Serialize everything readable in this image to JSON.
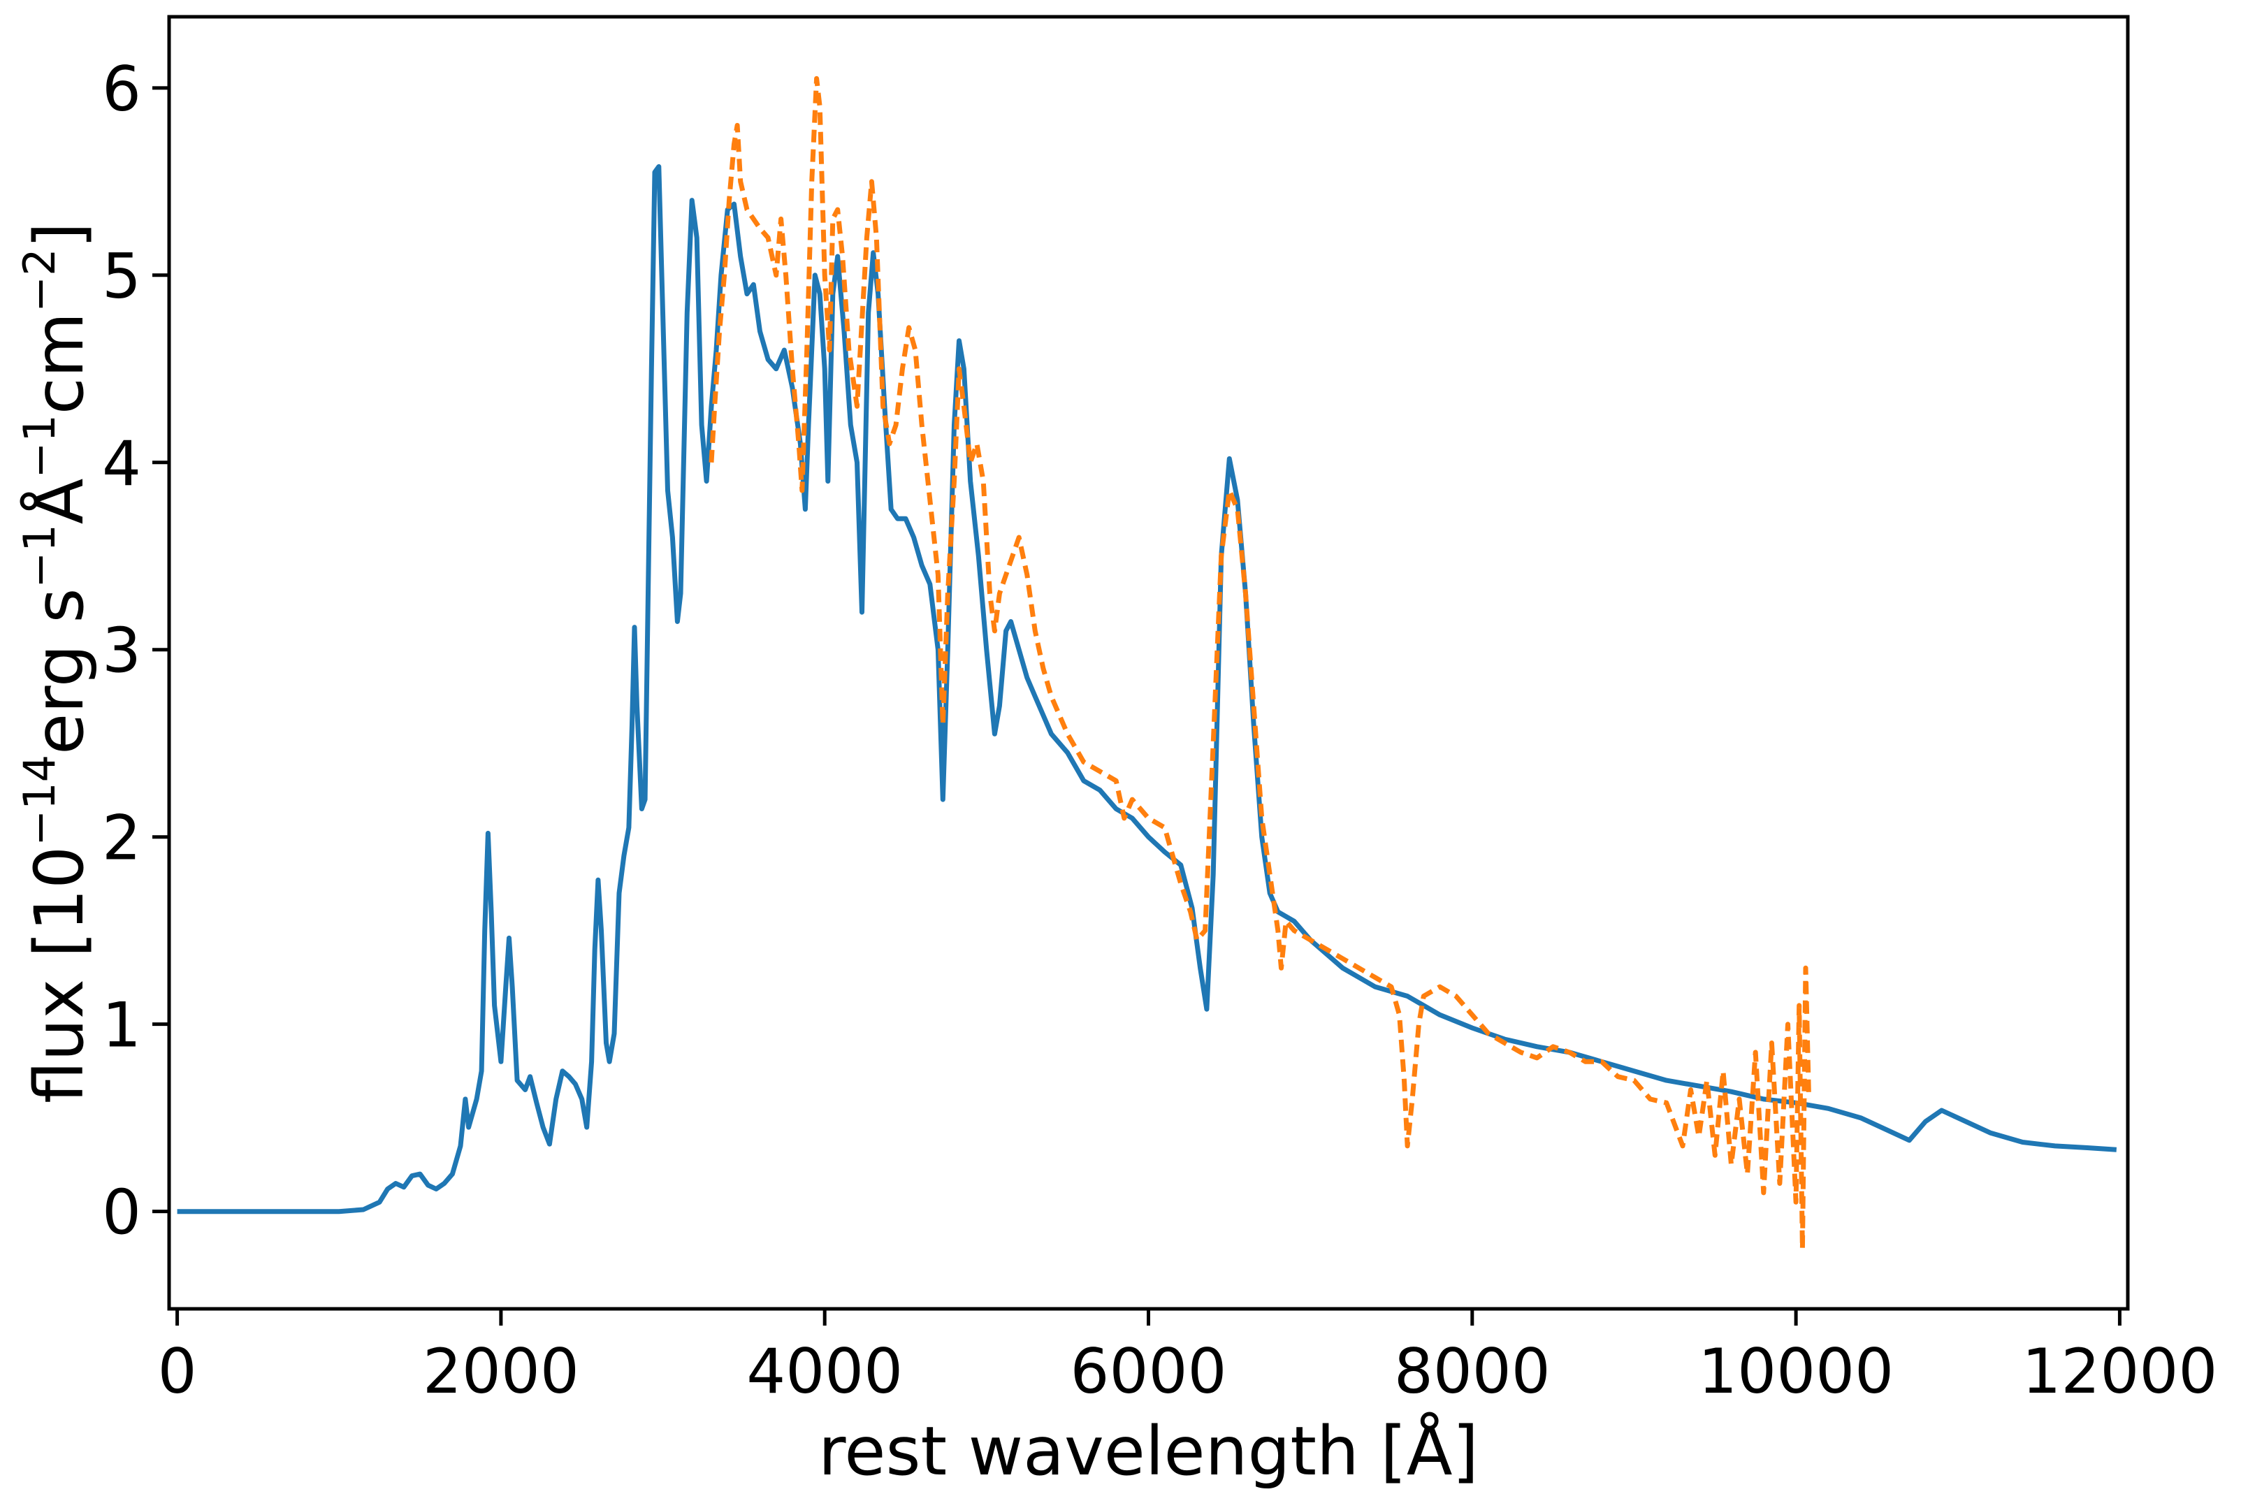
{
  "chart_data": {
    "type": "line",
    "xlabel": "rest wavelength [Å]",
    "ylabel": {
      "prefix": "flux [10",
      "exp1": "−14",
      "mid1": "erg s",
      "exp2": "−1",
      "mid2": "Å",
      "exp3": "−1",
      "mid3": "cm",
      "exp4": "−2",
      "suffix": "]"
    },
    "xlim": [
      -50,
      12050
    ],
    "ylim": [
      -0.52,
      6.38
    ],
    "xticks": [
      0,
      2000,
      4000,
      6000,
      8000,
      10000,
      12000
    ],
    "xtick_labels": [
      "0",
      "2000",
      "4000",
      "6000",
      "8000",
      "10000",
      "12000"
    ],
    "yticks": [
      0,
      1,
      2,
      3,
      4,
      5,
      6
    ],
    "ytick_labels": [
      "0",
      "1",
      "2",
      "3",
      "4",
      "5",
      "6"
    ],
    "grid": false,
    "series": [
      {
        "color": "#1f77b4",
        "style": "solid",
        "points": [
          [
            0,
            0
          ],
          [
            1000,
            0
          ],
          [
            1150,
            0.01
          ],
          [
            1250,
            0.05
          ],
          [
            1300,
            0.12
          ],
          [
            1350,
            0.15
          ],
          [
            1400,
            0.13
          ],
          [
            1450,
            0.19
          ],
          [
            1500,
            0.2
          ],
          [
            1550,
            0.14
          ],
          [
            1600,
            0.12
          ],
          [
            1650,
            0.15
          ],
          [
            1700,
            0.2
          ],
          [
            1750,
            0.35
          ],
          [
            1780,
            0.6
          ],
          [
            1800,
            0.45
          ],
          [
            1850,
            0.6
          ],
          [
            1880,
            0.75
          ],
          [
            1900,
            1.5
          ],
          [
            1920,
            2.02
          ],
          [
            1940,
            1.6
          ],
          [
            1960,
            1.1
          ],
          [
            2000,
            0.8
          ],
          [
            2030,
            1.2
          ],
          [
            2050,
            1.46
          ],
          [
            2070,
            1.2
          ],
          [
            2100,
            0.7
          ],
          [
            2150,
            0.65
          ],
          [
            2180,
            0.72
          ],
          [
            2220,
            0.58
          ],
          [
            2260,
            0.45
          ],
          [
            2300,
            0.36
          ],
          [
            2340,
            0.6
          ],
          [
            2380,
            0.75
          ],
          [
            2420,
            0.72
          ],
          [
            2460,
            0.68
          ],
          [
            2500,
            0.6
          ],
          [
            2530,
            0.45
          ],
          [
            2560,
            0.8
          ],
          [
            2580,
            1.4
          ],
          [
            2600,
            1.77
          ],
          [
            2620,
            1.5
          ],
          [
            2650,
            0.9
          ],
          [
            2670,
            0.8
          ],
          [
            2700,
            0.95
          ],
          [
            2730,
            1.7
          ],
          [
            2760,
            1.9
          ],
          [
            2790,
            2.05
          ],
          [
            2810,
            2.6
          ],
          [
            2825,
            3.12
          ],
          [
            2840,
            2.7
          ],
          [
            2870,
            2.15
          ],
          [
            2890,
            2.2
          ],
          [
            2930,
            4.5
          ],
          [
            2950,
            5.55
          ],
          [
            2975,
            5.58
          ],
          [
            3000,
            4.8
          ],
          [
            3030,
            3.85
          ],
          [
            3060,
            3.6
          ],
          [
            3090,
            3.15
          ],
          [
            3110,
            3.3
          ],
          [
            3150,
            4.8
          ],
          [
            3180,
            5.4
          ],
          [
            3210,
            5.2
          ],
          [
            3240,
            4.2
          ],
          [
            3270,
            3.9
          ],
          [
            3300,
            4.3
          ],
          [
            3330,
            4.6
          ],
          [
            3360,
            5.0
          ],
          [
            3400,
            5.35
          ],
          [
            3440,
            5.38
          ],
          [
            3480,
            5.1
          ],
          [
            3520,
            4.9
          ],
          [
            3560,
            4.95
          ],
          [
            3600,
            4.7
          ],
          [
            3650,
            4.55
          ],
          [
            3700,
            4.5
          ],
          [
            3750,
            4.6
          ],
          [
            3800,
            4.4
          ],
          [
            3850,
            4.1
          ],
          [
            3880,
            3.75
          ],
          [
            3900,
            4.2
          ],
          [
            3940,
            5.0
          ],
          [
            3970,
            4.9
          ],
          [
            4000,
            4.5
          ],
          [
            4020,
            3.9
          ],
          [
            4050,
            4.9
          ],
          [
            4080,
            5.1
          ],
          [
            4120,
            4.7
          ],
          [
            4160,
            4.2
          ],
          [
            4200,
            4.0
          ],
          [
            4230,
            3.2
          ],
          [
            4270,
            4.8
          ],
          [
            4300,
            5.12
          ],
          [
            4330,
            4.9
          ],
          [
            4370,
            4.3
          ],
          [
            4410,
            3.75
          ],
          [
            4450,
            3.7
          ],
          [
            4500,
            3.7
          ],
          [
            4550,
            3.6
          ],
          [
            4600,
            3.45
          ],
          [
            4650,
            3.35
          ],
          [
            4700,
            3.0
          ],
          [
            4730,
            2.2
          ],
          [
            4760,
            3.0
          ],
          [
            4800,
            4.2
          ],
          [
            4830,
            4.65
          ],
          [
            4860,
            4.5
          ],
          [
            4900,
            3.9
          ],
          [
            4950,
            3.5
          ],
          [
            5000,
            3.0
          ],
          [
            5050,
            2.55
          ],
          [
            5080,
            2.7
          ],
          [
            5120,
            3.1
          ],
          [
            5150,
            3.15
          ],
          [
            5200,
            3.0
          ],
          [
            5250,
            2.85
          ],
          [
            5300,
            2.75
          ],
          [
            5350,
            2.65
          ],
          [
            5400,
            2.55
          ],
          [
            5450,
            2.5
          ],
          [
            5500,
            2.45
          ],
          [
            5600,
            2.3
          ],
          [
            5700,
            2.25
          ],
          [
            5800,
            2.15
          ],
          [
            5900,
            2.1
          ],
          [
            6000,
            2.0
          ],
          [
            6100,
            1.92
          ],
          [
            6200,
            1.85
          ],
          [
            6270,
            1.62
          ],
          [
            6320,
            1.3
          ],
          [
            6360,
            1.08
          ],
          [
            6400,
            1.8
          ],
          [
            6450,
            3.5
          ],
          [
            6500,
            4.02
          ],
          [
            6550,
            3.8
          ],
          [
            6600,
            3.3
          ],
          [
            6650,
            2.6
          ],
          [
            6700,
            2.0
          ],
          [
            6750,
            1.7
          ],
          [
            6800,
            1.6
          ],
          [
            6900,
            1.55
          ],
          [
            7000,
            1.45
          ],
          [
            7200,
            1.3
          ],
          [
            7400,
            1.2
          ],
          [
            7600,
            1.15
          ],
          [
            7800,
            1.05
          ],
          [
            8000,
            0.98
          ],
          [
            8200,
            0.92
          ],
          [
            8400,
            0.88
          ],
          [
            8600,
            0.85
          ],
          [
            8800,
            0.8
          ],
          [
            9000,
            0.75
          ],
          [
            9200,
            0.7
          ],
          [
            9400,
            0.67
          ],
          [
            9600,
            0.64
          ],
          [
            9800,
            0.6
          ],
          [
            10000,
            0.58
          ],
          [
            10200,
            0.55
          ],
          [
            10400,
            0.5
          ],
          [
            10600,
            0.42
          ],
          [
            10700,
            0.38
          ],
          [
            10800,
            0.48
          ],
          [
            10900,
            0.54
          ],
          [
            11000,
            0.5
          ],
          [
            11200,
            0.42
          ],
          [
            11400,
            0.37
          ],
          [
            11600,
            0.35
          ],
          [
            11800,
            0.34
          ],
          [
            11980,
            0.33
          ]
        ]
      },
      {
        "color": "#ff7f0e",
        "style": "dashed",
        "points": [
          [
            3300,
            4.0
          ],
          [
            3320,
            4.3
          ],
          [
            3350,
            4.7
          ],
          [
            3380,
            5.0
          ],
          [
            3410,
            5.4
          ],
          [
            3440,
            5.7
          ],
          [
            3460,
            5.8
          ],
          [
            3480,
            5.5
          ],
          [
            3520,
            5.35
          ],
          [
            3560,
            5.3
          ],
          [
            3600,
            5.25
          ],
          [
            3650,
            5.2
          ],
          [
            3700,
            5.0
          ],
          [
            3730,
            5.3
          ],
          [
            3760,
            5.0
          ],
          [
            3800,
            4.5
          ],
          [
            3840,
            4.1
          ],
          [
            3860,
            3.85
          ],
          [
            3890,
            4.6
          ],
          [
            3920,
            5.5
          ],
          [
            3950,
            6.05
          ],
          [
            3970,
            5.9
          ],
          [
            4000,
            5.0
          ],
          [
            4030,
            4.6
          ],
          [
            4050,
            5.3
          ],
          [
            4080,
            5.35
          ],
          [
            4110,
            5.1
          ],
          [
            4150,
            4.6
          ],
          [
            4200,
            4.3
          ],
          [
            4260,
            5.2
          ],
          [
            4290,
            5.5
          ],
          [
            4320,
            5.2
          ],
          [
            4360,
            4.3
          ],
          [
            4400,
            4.1
          ],
          [
            4440,
            4.2
          ],
          [
            4480,
            4.5
          ],
          [
            4520,
            4.72
          ],
          [
            4560,
            4.6
          ],
          [
            4600,
            4.2
          ],
          [
            4650,
            3.8
          ],
          [
            4700,
            3.4
          ],
          [
            4730,
            2.6
          ],
          [
            4760,
            3.3
          ],
          [
            4800,
            3.9
          ],
          [
            4830,
            4.5
          ],
          [
            4860,
            4.3
          ],
          [
            4900,
            4.0
          ],
          [
            4940,
            4.1
          ],
          [
            4980,
            3.9
          ],
          [
            5020,
            3.3
          ],
          [
            5050,
            3.1
          ],
          [
            5080,
            3.3
          ],
          [
            5120,
            3.4
          ],
          [
            5160,
            3.5
          ],
          [
            5200,
            3.6
          ],
          [
            5250,
            3.4
          ],
          [
            5300,
            3.1
          ],
          [
            5350,
            2.9
          ],
          [
            5400,
            2.75
          ],
          [
            5500,
            2.55
          ],
          [
            5600,
            2.4
          ],
          [
            5700,
            2.35
          ],
          [
            5800,
            2.3
          ],
          [
            5850,
            2.1
          ],
          [
            5900,
            2.2
          ],
          [
            6000,
            2.1
          ],
          [
            6100,
            2.05
          ],
          [
            6150,
            1.9
          ],
          [
            6200,
            1.75
          ],
          [
            6260,
            1.6
          ],
          [
            6300,
            1.45
          ],
          [
            6350,
            1.5
          ],
          [
            6400,
            2.5
          ],
          [
            6450,
            3.5
          ],
          [
            6500,
            3.85
          ],
          [
            6550,
            3.75
          ],
          [
            6600,
            3.3
          ],
          [
            6650,
            2.7
          ],
          [
            6700,
            2.1
          ],
          [
            6750,
            1.8
          ],
          [
            6800,
            1.5
          ],
          [
            6820,
            1.3
          ],
          [
            6850,
            1.55
          ],
          [
            6900,
            1.5
          ],
          [
            7000,
            1.45
          ],
          [
            7200,
            1.35
          ],
          [
            7400,
            1.25
          ],
          [
            7500,
            1.2
          ],
          [
            7550,
            1.05
          ],
          [
            7580,
            0.7
          ],
          [
            7600,
            0.35
          ],
          [
            7630,
            0.6
          ],
          [
            7670,
            1.0
          ],
          [
            7700,
            1.15
          ],
          [
            7800,
            1.2
          ],
          [
            7900,
            1.15
          ],
          [
            8000,
            1.05
          ],
          [
            8100,
            0.95
          ],
          [
            8200,
            0.9
          ],
          [
            8300,
            0.85
          ],
          [
            8400,
            0.82
          ],
          [
            8500,
            0.88
          ],
          [
            8600,
            0.85
          ],
          [
            8700,
            0.8
          ],
          [
            8800,
            0.8
          ],
          [
            8900,
            0.72
          ],
          [
            9000,
            0.7
          ],
          [
            9100,
            0.6
          ],
          [
            9200,
            0.58
          ],
          [
            9300,
            0.35
          ],
          [
            9350,
            0.65
          ],
          [
            9400,
            0.4
          ],
          [
            9450,
            0.7
          ],
          [
            9500,
            0.3
          ],
          [
            9550,
            0.75
          ],
          [
            9600,
            0.25
          ],
          [
            9650,
            0.6
          ],
          [
            9700,
            0.2
          ],
          [
            9750,
            0.85
          ],
          [
            9800,
            0.1
          ],
          [
            9850,
            0.9
          ],
          [
            9900,
            0.15
          ],
          [
            9950,
            1.0
          ],
          [
            10000,
            0.05
          ],
          [
            10020,
            1.1
          ],
          [
            10040,
            -0.2
          ],
          [
            10060,
            1.3
          ],
          [
            10080,
            0.6
          ]
        ]
      }
    ]
  }
}
